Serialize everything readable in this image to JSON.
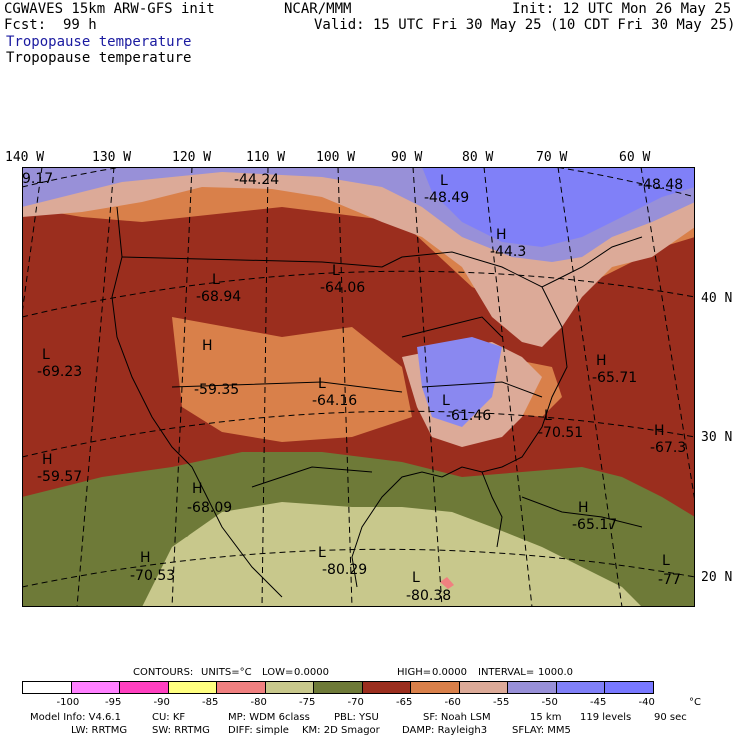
{
  "header": {
    "model": "CGWAVES 15km ARW-GFS init",
    "fcst_label": "Fcst:",
    "fcst_hours": "99 h",
    "center": "NCAR/MMM",
    "init": "Init: 12 UTC Mon 26 May 25",
    "valid": "Valid: 15 UTC Fri 30 May 25 (10 CDT Fri 30 May 25)",
    "field_title_blue": "Tropopause temperature",
    "field_title_black": "Tropopause temperature"
  },
  "lon_labels": [
    "140 W",
    "130 W",
    "120 W",
    "110 W",
    "100 W",
    "90 W",
    "80 W",
    "70 W",
    "60 W"
  ],
  "lat_labels": [
    "40 N",
    "30 N",
    "20 N"
  ],
  "map_annotations": [
    {
      "letter": "",
      "value": "9.17"
    },
    {
      "letter": "",
      "value": "-44.24"
    },
    {
      "letter": "L",
      "value": "-48.49"
    },
    {
      "letter": "",
      "value": "-48.48"
    },
    {
      "letter": "H",
      "value": "-44.3"
    },
    {
      "letter": "L",
      "value": "-64.06"
    },
    {
      "letter": "L",
      "value": "-68.94"
    },
    {
      "letter": "L",
      "value": "-69.23"
    },
    {
      "letter": "H",
      "value": "-59.35"
    },
    {
      "letter": "L",
      "value": "-64.16"
    },
    {
      "letter": "H",
      "value": "-65.71"
    },
    {
      "letter": "L",
      "value": "-61.46"
    },
    {
      "letter": "L",
      "value": "-70.51"
    },
    {
      "letter": "H",
      "value": "-67.3"
    },
    {
      "letter": "H",
      "value": "-59.57"
    },
    {
      "letter": "H",
      "value": "-68.09"
    },
    {
      "letter": "H",
      "value": "-65.17"
    },
    {
      "letter": "H",
      "value": "-70.53"
    },
    {
      "letter": "L",
      "value": "-80.29"
    },
    {
      "letter": "L",
      "value": "-80.38"
    },
    {
      "letter": "L",
      "value": "-77"
    }
  ],
  "contours_line": {
    "contours": "CONTOURS:",
    "units": "UNITS=°C",
    "low": "LOW=",
    "low_val": "0.0000",
    "high": "HIGH=",
    "high_val": "0.0000",
    "interval": "INTERVAL=",
    "interval_val": "1000.0"
  },
  "colorbar": {
    "colors": [
      "#ffffff",
      "#ff80ff",
      "#ff40c0",
      "#ffff80",
      "#f08080",
      "#c8c88c",
      "#6e7a38",
      "#9b2e1e",
      "#d9804a",
      "#dcaa98",
      "#9890d8",
      "#8080f8",
      "#7878ff"
    ],
    "labels": [
      "-100",
      "-95",
      "-90",
      "-85",
      "-80",
      "-75",
      "-70",
      "-65",
      "-60",
      "-55",
      "-50",
      "-45",
      "-40"
    ],
    "unit": "°C"
  },
  "model_info": {
    "line1": [
      "Model Info: V4.6.1",
      "CU: KF",
      "MP: WDM 6class",
      "PBL: YSU",
      "SF: Noah LSM",
      "15 km",
      "119 levels",
      "90 sec"
    ],
    "line2": [
      "LW: RRTMG",
      "SW: RRTMG",
      "DIFF: simple",
      "KM: 2D Smagor",
      "DAMP: Rayleigh3",
      "SFLAY: MM5"
    ]
  }
}
